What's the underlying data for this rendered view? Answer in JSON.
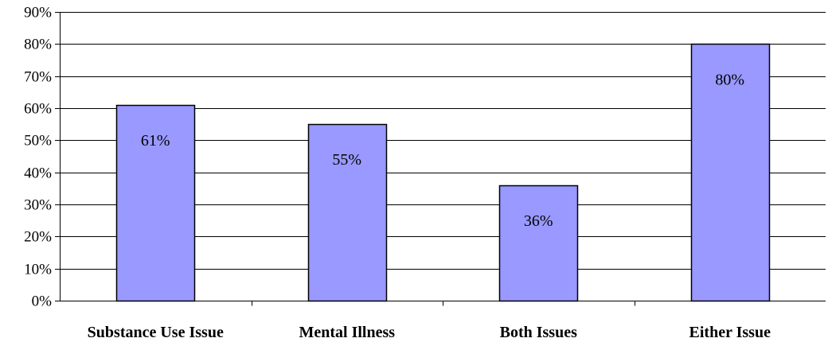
{
  "chart_data": {
    "type": "bar",
    "title": "",
    "xlabel": "",
    "ylabel": "",
    "categories": [
      "Substance Use Issue",
      "Mental Illness",
      "Both Issues",
      "Either Issue"
    ],
    "values": [
      61,
      55,
      36,
      80
    ],
    "data_labels": [
      "61%",
      "55%",
      "36%",
      "80%"
    ],
    "ylim": [
      0,
      90
    ],
    "y_ticks": [
      0,
      10,
      20,
      30,
      40,
      50,
      60,
      70,
      80,
      90
    ],
    "y_tick_labels": [
      "0%",
      "10%",
      "20%",
      "30%",
      "40%",
      "50%",
      "60%",
      "70%",
      "80%",
      "90%"
    ],
    "grid": true,
    "legend": "none",
    "bar_color": "#9999ff",
    "bar_edge_color": "#000000"
  }
}
